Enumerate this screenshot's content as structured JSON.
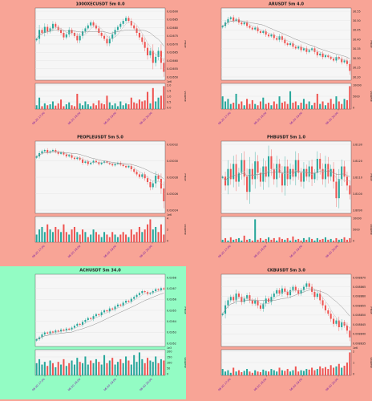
{
  "colors": {
    "page_background": "#f8a496",
    "highlight_background": "#93fcc4",
    "plot_background": "#f6f6f6",
    "grid": "#e3e3e3",
    "up": "#26a69a",
    "down": "#ef5350",
    "ma_short": "#bdbdbd",
    "ma_long": "#8c8c8c",
    "axis_text": "#222222",
    "tick_text": "#7b1fa2"
  },
  "panels": [
    {
      "title": "1000XECUSDT 5m 0.0",
      "highlight": false,
      "y_ticks": [
        "0.02690",
        "0.02685",
        "0.02680",
        "0.02675",
        "0.02670",
        "0.02665",
        "0.02660",
        "0.02655",
        "0.02650"
      ],
      "vol_ticks": [
        "2.0",
        "1.5",
        "1.0",
        "0.5",
        "0.0"
      ],
      "vol_exp": "1e6",
      "x_ticks": [
        "06-20 17:00",
        "06-20 18:00",
        "06-20 19:00",
        "06-20 20:00"
      ],
      "ylabel": "Price",
      "vlabel": "Volume"
    },
    {
      "title": "ARUSDT 5m 4.0",
      "highlight": false,
      "y_ticks": [
        "30.55",
        "30.50",
        "30.45",
        "30.40",
        "30.35",
        "30.30",
        "30.25",
        "30.20"
      ],
      "vol_ticks": [
        "10000",
        "5000",
        "0"
      ],
      "vol_exp": "",
      "x_ticks": [
        "06-20 17:00",
        "06-20 18:00",
        "06-20 19:00",
        "06-20 20:00"
      ],
      "ylabel": "Price",
      "vlabel": "Volume"
    },
    {
      "title": "PEOPLEUSDT 5m 5.0",
      "highlight": false,
      "y_ticks": [
        "0.03032",
        "0.03030",
        "0.03028",
        "0.03026",
        "0.03024"
      ],
      "vol_ticks": [
        "4",
        "2",
        "0"
      ],
      "vol_exp": "1e6",
      "x_ticks": [
        "06-20 17:00",
        "06-20 18:00",
        "06-20 19:00",
        "06-20 20:00"
      ],
      "ylabel": "Price",
      "vlabel": "Volume"
    },
    {
      "title": "PHBUSDT 5m 1.0",
      "highlight": false,
      "y_ticks": [
        "3.8130",
        "3.8120",
        "3.8110",
        "3.8100",
        "3.8090"
      ],
      "vol_ticks": [
        "10000",
        "5000",
        "0"
      ],
      "vol_exp": "",
      "x_ticks": [
        "06-20 17:00",
        "06-20 18:00",
        "06-20 19:00",
        "06-20 20:00"
      ],
      "ylabel": "Price",
      "vlabel": "Volume"
    },
    {
      "title": "ACHUSDT 5m 34.0",
      "highlight": true,
      "y_ticks": [
        "0.0268",
        "0.0267",
        "0.0266",
        "0.0265",
        "0.0264",
        "0.0263",
        "0.0262"
      ],
      "vol_ticks": [
        "200",
        "150",
        "100",
        "50",
        "0"
      ],
      "vol_exp": "1e3",
      "x_ticks": [
        "06-20 17:00",
        "06-20 18:00",
        "06-20 19:00",
        "06-20 20:00"
      ],
      "ylabel": "Price",
      "vlabel": "Volume"
    },
    {
      "title": "CKBUSDT 5m 3.0",
      "highlight": false,
      "y_ticks": [
        "0.008870",
        "0.008865",
        "0.008860",
        "0.008855",
        "0.008850",
        "0.008845",
        "0.008840",
        "0.008835"
      ],
      "vol_ticks": [
        "2",
        "1",
        "0"
      ],
      "vol_exp": "1e6",
      "x_ticks": [
        "06-20 17:00",
        "06-20 18:00",
        "06-20 19:00",
        "06-20 20:00"
      ],
      "ylabel": "Price",
      "vlabel": "Volume"
    }
  ],
  "chart_data": [
    {
      "type": "candlestick",
      "title": "1000XECUSDT 5m 0.0",
      "ylim": [
        0.0265,
        0.02695
      ],
      "vol_ylim": [
        0,
        2000000
      ],
      "close": [
        0.02676,
        0.02682,
        0.0268,
        0.02684,
        0.02681,
        0.02683,
        0.02686,
        0.02684,
        0.02682,
        0.0268,
        0.02677,
        0.02679,
        0.02682,
        0.0268,
        0.02678,
        0.02675,
        0.02678,
        0.02681,
        0.02683,
        0.02685,
        0.02687,
        0.02685,
        0.02683,
        0.0268,
        0.02678,
        0.02676,
        0.02673,
        0.02676,
        0.02679,
        0.02682,
        0.02684,
        0.02686,
        0.02688,
        0.0269,
        0.02688,
        0.02685,
        0.02683,
        0.0268,
        0.02677,
        0.02674,
        0.0267,
        0.02665,
        0.02668,
        0.0266,
        0.02664,
        0.02668,
        0.0266,
        0.02654
      ],
      "volume": [
        200000,
        600000,
        150000,
        300000,
        200000,
        250000,
        400000,
        180000,
        300000,
        500000,
        150000,
        250000,
        350000,
        200000,
        150000,
        800000,
        300000,
        200000,
        400000,
        250000,
        150000,
        300000,
        200000,
        450000,
        300000,
        250000,
        700000,
        350000,
        200000,
        300000,
        150000,
        400000,
        200000,
        300000,
        250000,
        600000,
        350000,
        300000,
        500000,
        400000,
        450000,
        900000,
        300000,
        1100000,
        400000,
        600000,
        700000,
        1200000
      ]
    },
    {
      "type": "candlestick",
      "title": "ARUSDT 5m 4.0",
      "ylim": [
        30.18,
        30.57
      ],
      "close": [
        30.48,
        30.5,
        30.52,
        30.53,
        30.51,
        30.52,
        30.5,
        30.49,
        30.5,
        30.48,
        30.47,
        30.46,
        30.47,
        30.45,
        30.44,
        30.45,
        30.43,
        30.42,
        30.43,
        30.41,
        30.4,
        30.42,
        30.4,
        30.38,
        30.37,
        30.38,
        30.36,
        30.35,
        30.36,
        30.34,
        30.35,
        30.33,
        30.34,
        30.35,
        30.33,
        30.31,
        30.32,
        30.3,
        30.31,
        30.3,
        30.29,
        30.28,
        30.3,
        30.29,
        30.27,
        30.28,
        30.26,
        30.22
      ],
      "volume": [
        5000,
        3000,
        4000,
        2000,
        2500,
        6000,
        2000,
        3000,
        1500,
        4000,
        2000,
        3500,
        2000,
        1500,
        3000,
        4500,
        2000,
        2500,
        1500,
        3000,
        2000,
        5000,
        2500,
        3000,
        2000,
        7000,
        2500,
        3000,
        1500,
        2500,
        4000,
        2000,
        3000,
        1500,
        2500,
        6000,
        2000,
        3000,
        1500,
        2500,
        4000,
        2000,
        5000,
        3000,
        2000,
        4000,
        3500,
        9000
      ]
    },
    {
      "type": "candlestick",
      "title": "PEOPLEUSDT 5m 5.0",
      "ylim": [
        0.030225,
        0.03033
      ],
      "close": [
        0.03031,
        0.030315,
        0.030318,
        0.03032,
        0.030316,
        0.030318,
        0.03032,
        0.030317,
        0.030314,
        0.030316,
        0.030313,
        0.03031,
        0.030312,
        0.030308,
        0.030306,
        0.030308,
        0.030305,
        0.0303,
        0.030302,
        0.030298,
        0.0303,
        0.030303,
        0.030301,
        0.030298,
        0.0303,
        0.030302,
        0.0303,
        0.030298,
        0.030296,
        0.030298,
        0.0303,
        0.030297,
        0.030295,
        0.030293,
        0.030295,
        0.03029,
        0.030286,
        0.030282,
        0.030278,
        0.030282,
        0.030276,
        0.03027,
        0.030262,
        0.030268,
        0.03028,
        0.030275,
        0.03026,
        0.03024
      ],
      "volume": [
        1500000,
        2500000,
        3000000,
        2000000,
        3500000,
        2500000,
        2000000,
        3000000,
        2500000,
        2000000,
        3500000,
        2000000,
        1500000,
        2500000,
        3000000,
        2000000,
        1500000,
        2500000,
        2000000,
        1000000,
        1500000,
        2500000,
        2000000,
        1500000,
        1000000,
        2000000,
        1500000,
        1000000,
        2000000,
        1500000,
        1000000,
        1500000,
        2000000,
        1500000,
        1000000,
        2500000,
        1500000,
        2000000,
        3000000,
        2000000,
        2500000,
        3500000,
        4500000,
        2500000,
        3000000,
        2000000,
        3500000,
        1500000
      ]
    },
    {
      "type": "candlestick",
      "title": "PHBUSDT 5m 1.0",
      "ylim": [
        3.8085,
        3.8138
      ],
      "close": [
        3.8112,
        3.8105,
        3.8118,
        3.811,
        3.8122,
        3.8108,
        3.8115,
        3.8125,
        3.8112,
        3.81,
        3.8118,
        3.811,
        3.8124,
        3.8115,
        3.8108,
        3.812,
        3.8112,
        3.8128,
        3.8118,
        3.811,
        3.8122,
        3.8115,
        3.8105,
        3.812,
        3.811,
        3.8118,
        3.8112,
        3.8125,
        3.8115,
        3.8108,
        3.8118,
        3.8112,
        3.812,
        3.811,
        3.8115,
        3.8126,
        3.8118,
        3.811,
        3.8122,
        3.8112,
        3.8118,
        3.8108,
        3.8095,
        3.811,
        3.812,
        3.8112,
        3.8105,
        3.8098
      ],
      "volume": [
        1500,
        2500,
        1000,
        3000,
        1500,
        2000,
        2500,
        1000,
        4000,
        1500,
        2000,
        1000,
        14000,
        1500,
        2500,
        1000,
        2000,
        3000,
        1500,
        2500,
        1000,
        3000,
        2000,
        1500,
        2500,
        1000,
        3500,
        1500,
        2000,
        1000,
        2500,
        1500,
        3000,
        2000,
        1000,
        2500,
        1500,
        2000,
        3000,
        1500,
        2000,
        1000,
        2500,
        1500,
        2000,
        3000,
        1500,
        2500
      ]
    },
    {
      "type": "candlestick",
      "title": "ACHUSDT 5m 34.0",
      "ylim": [
        0.02615,
        0.02685
      ],
      "close": [
        0.0262,
        0.02622,
        0.02625,
        0.02627,
        0.02626,
        0.02628,
        0.02627,
        0.02629,
        0.02628,
        0.0263,
        0.02629,
        0.02631,
        0.0263,
        0.02632,
        0.02634,
        0.02636,
        0.02635,
        0.02638,
        0.0264,
        0.02642,
        0.02641,
        0.02644,
        0.02646,
        0.02645,
        0.02648,
        0.0265,
        0.02649,
        0.02652,
        0.02651,
        0.02654,
        0.02656,
        0.02655,
        0.02658,
        0.0266,
        0.02659,
        0.02662,
        0.02664,
        0.02666,
        0.02668,
        0.0267,
        0.02669,
        0.02667,
        0.02668,
        0.0267,
        0.02672,
        0.02671,
        0.02673,
        0.02672
      ],
      "volume": [
        90000,
        120000,
        80000,
        100000,
        70000,
        110000,
        90000,
        60000,
        100000,
        80000,
        120000,
        70000,
        90000,
        110000,
        80000,
        130000,
        100000,
        90000,
        140000,
        80000,
        110000,
        90000,
        120000,
        100000,
        80000,
        150000,
        90000,
        110000,
        130000,
        80000,
        100000,
        120000,
        90000,
        140000,
        110000,
        80000,
        150000,
        100000,
        170000,
        120000,
        90000,
        130000,
        110000,
        100000,
        140000,
        90000,
        120000,
        110000
      ]
    },
    {
      "type": "candlestick",
      "title": "CKBUSDT 5m 3.0",
      "ylim": [
        0.008832,
        0.008872
      ],
      "close": [
        0.00885,
        0.008855,
        0.008858,
        0.00886,
        0.008858,
        0.008862,
        0.00886,
        0.008857,
        0.008859,
        0.008861,
        0.008858,
        0.008856,
        0.008858,
        0.008855,
        0.008853,
        0.008856,
        0.008859,
        0.008857,
        0.00886,
        0.008862,
        0.008864,
        0.008862,
        0.008865,
        0.008863,
        0.008861,
        0.008864,
        0.008866,
        0.008864,
        0.008862,
        0.008864,
        0.008866,
        0.008868,
        0.008866,
        0.008863,
        0.00886,
        0.008862,
        0.008858,
        0.008855,
        0.008852,
        0.00885,
        0.008847,
        0.008844,
        0.008846,
        0.008842,
        0.008845,
        0.008843,
        0.00884,
        0.008836
      ],
      "volume": [
        500000,
        300000,
        400000,
        200000,
        600000,
        300000,
        400000,
        250000,
        350000,
        500000,
        300000,
        200000,
        400000,
        300000,
        250000,
        450000,
        350000,
        300000,
        500000,
        400000,
        300000,
        600000,
        400000,
        350000,
        500000,
        300000,
        400000,
        700000,
        300000,
        400000,
        350000,
        500000,
        450000,
        600000,
        400000,
        500000,
        700000,
        550000,
        650000,
        500000,
        800000,
        600000,
        700000,
        900000,
        600000,
        750000,
        1000000,
        1800000
      ]
    }
  ]
}
